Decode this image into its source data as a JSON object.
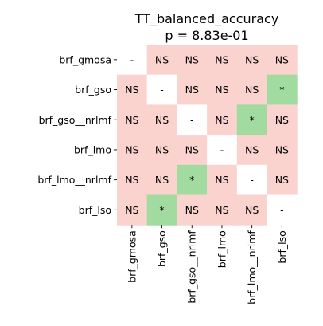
{
  "chart_data": {
    "type": "heatmap",
    "title": "TT_balanced_accuracy",
    "subtitle": "p = 8.83e-01",
    "rows": [
      "brf_gmosa",
      "brf_gso",
      "brf_gso__nrlmf",
      "brf_lmo",
      "brf_lmo__nrlmf",
      "brf_lso"
    ],
    "columns": [
      "brf_gmosa",
      "brf_gso",
      "brf_gso__nrlmf",
      "brf_lmo",
      "brf_lmo__nrlmf",
      "brf_lso"
    ],
    "cells": [
      [
        "-",
        "NS",
        "NS",
        "NS",
        "NS",
        "NS"
      ],
      [
        "NS",
        "-",
        "NS",
        "NS",
        "NS",
        "*"
      ],
      [
        "NS",
        "NS",
        "-",
        "NS",
        "*",
        "NS"
      ],
      [
        "NS",
        "NS",
        "NS",
        "-",
        "NS",
        "NS"
      ],
      [
        "NS",
        "NS",
        "*",
        "NS",
        "-",
        "NS"
      ],
      [
        "NS",
        "*",
        "NS",
        "NS",
        "NS",
        "-"
      ]
    ],
    "colors": {
      "NS": "#fad3cf",
      "*": "#a2dba0",
      "-": "#ffffff"
    },
    "grid": false,
    "legend": "none"
  }
}
